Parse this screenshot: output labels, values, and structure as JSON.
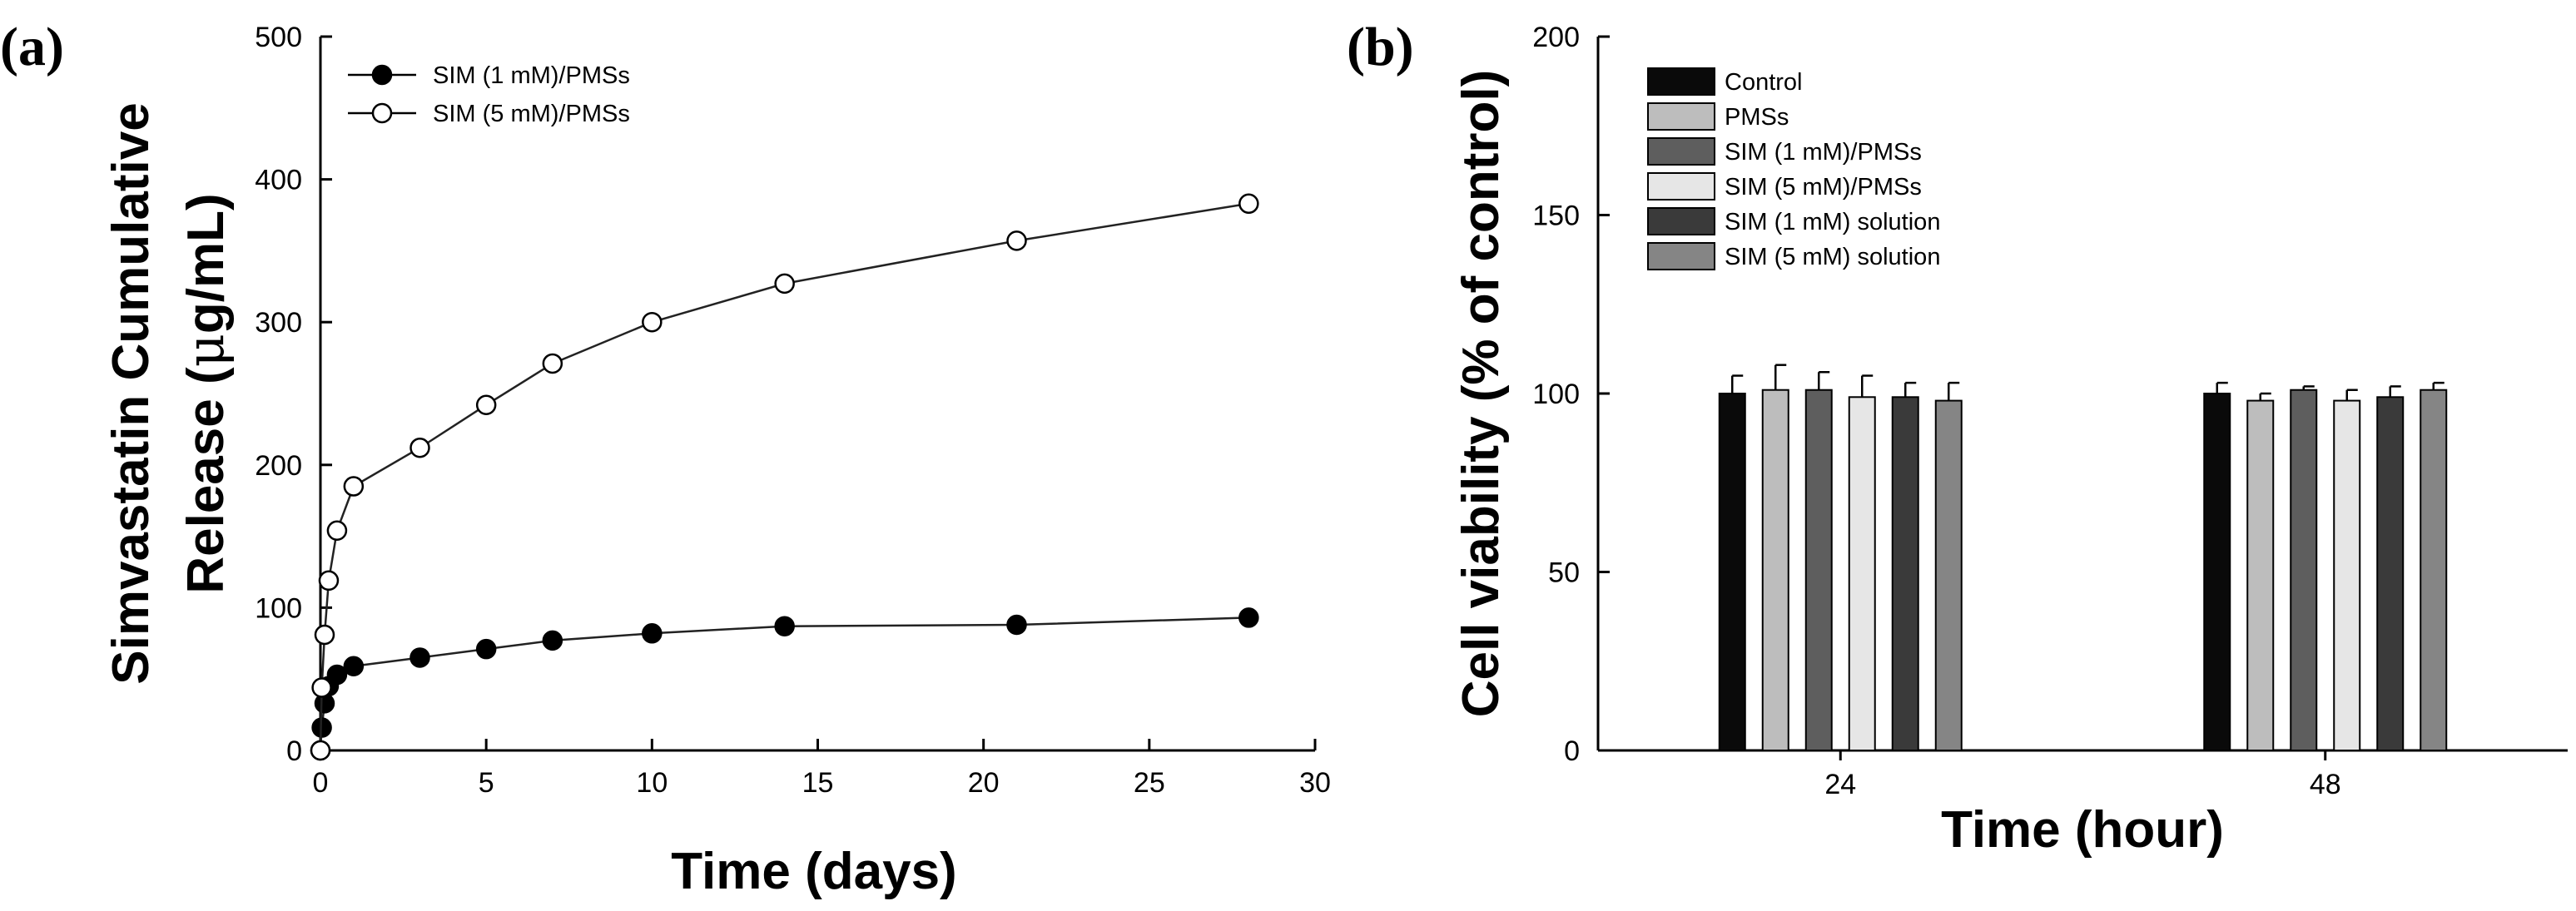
{
  "chart_data": [
    {
      "panel": "(a)",
      "type": "line",
      "title": "",
      "xlabel": "Time (days)",
      "ylabel_line1": "Simvastatin Cumulative",
      "ylabel_line2_prefix": "Release (",
      "ylabel_line2_mu": "μ",
      "ylabel_line2_suffix": "g/mL)",
      "xlim": [
        0,
        30
      ],
      "ylim": [
        0,
        500
      ],
      "xticks": [
        0,
        5,
        10,
        15,
        20,
        25,
        30
      ],
      "yticks": [
        0,
        100,
        200,
        300,
        400,
        500
      ],
      "grid": false,
      "legend_position": "top-left",
      "series": [
        {
          "name": "SIM (1 mM)/PMSs",
          "marker": "filled-circle",
          "x": [
            0,
            0.04,
            0.125,
            0.25,
            0.5,
            1,
            3,
            5,
            7,
            10,
            14,
            21,
            28
          ],
          "y": [
            0,
            16,
            33,
            45,
            53,
            59,
            65,
            71,
            77,
            82,
            87,
            88,
            93
          ],
          "err": [
            0,
            1,
            1,
            1,
            1,
            1,
            1,
            1,
            1,
            1,
            1,
            1,
            1
          ]
        },
        {
          "name": "SIM (5 mM)/PMSs",
          "marker": "open-circle",
          "x": [
            0,
            0.04,
            0.125,
            0.25,
            0.5,
            1,
            3,
            5,
            7,
            10,
            14,
            21,
            28
          ],
          "y": [
            0,
            44,
            81,
            119,
            154,
            185,
            212,
            242,
            271,
            300,
            327,
            357,
            383
          ],
          "err": [
            0,
            2,
            2,
            3,
            3,
            3,
            3,
            4,
            4,
            4,
            4,
            4,
            5
          ]
        }
      ]
    },
    {
      "panel": "(b)",
      "type": "bar",
      "title": "",
      "xlabel": "Time (hour)",
      "ylabel": "Cell viability (% of control)",
      "categories": [
        "24",
        "48"
      ],
      "ylim": [
        0,
        200
      ],
      "yticks": [
        0,
        50,
        100,
        150,
        200
      ],
      "grid": false,
      "legend_position": "top-left",
      "series": [
        {
          "name": "Control",
          "color": "#0a0a0a",
          "values": [
            100,
            100
          ],
          "err": [
            5,
            3
          ]
        },
        {
          "name": "PMSs",
          "color": "#bdbdbd",
          "values": [
            101,
            98
          ],
          "err": [
            7,
            2
          ]
        },
        {
          "name": "SIM (1 mM)/PMSs",
          "color": "#5e5e5e",
          "values": [
            101,
            101
          ],
          "err": [
            5,
            1
          ]
        },
        {
          "name": "SIM (5 mM)/PMSs",
          "color": "#e6e6e6",
          "values": [
            99,
            98
          ],
          "err": [
            6,
            3
          ]
        },
        {
          "name": "SIM (1 mM) solution",
          "color": "#3a3a3a",
          "values": [
            99,
            99
          ],
          "err": [
            4,
            3
          ]
        },
        {
          "name": "SIM (5 mM) solution",
          "color": "#858585",
          "values": [
            98,
            101
          ],
          "err": [
            5,
            2
          ]
        }
      ]
    }
  ]
}
